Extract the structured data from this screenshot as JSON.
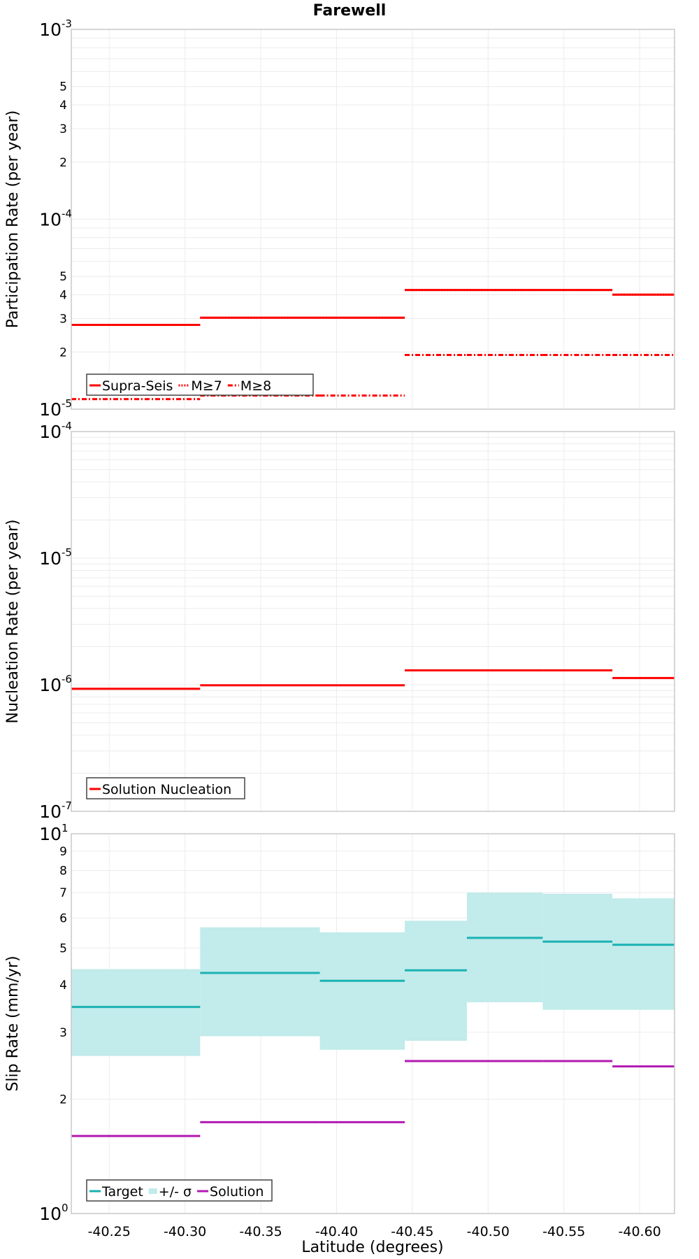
{
  "title": "Farewell",
  "xlabel": "Latitude (degrees)",
  "x_ticks": [
    "-40.25",
    "-40.30",
    "-40.35",
    "-40.40",
    "-40.45",
    "-40.50",
    "-40.55",
    "-40.60"
  ],
  "chart_data": [
    {
      "type": "line",
      "subtype": "step",
      "title": "Farewell",
      "xlabel": "Latitude (degrees)",
      "ylabel": "Participation Rate (per year)",
      "yscale": "log",
      "ylim": [
        1e-05,
        0.001
      ],
      "xlim": [
        -40.225,
        -40.623
      ],
      "x_edges": [
        -40.225,
        -40.31,
        -40.389,
        -40.445,
        -40.486,
        -40.536,
        -40.582,
        -40.623
      ],
      "grid": true,
      "legend_position": "bottom-left",
      "series": [
        {
          "name": "Supra-Seis",
          "style": "solid",
          "color": "#ff0000",
          "values": [
            2.78e-05,
            3.03e-05,
            3.03e-05,
            4.24e-05,
            4.24e-05,
            4.24e-05,
            4.01e-05
          ]
        },
        {
          "name": "M≥7",
          "style": "dotted",
          "color": "#ff0000",
          "values": [
            2.78e-05,
            3.03e-05,
            3.03e-05,
            4.24e-05,
            4.24e-05,
            4.24e-05,
            4.01e-05
          ]
        },
        {
          "name": "M≥8",
          "style": "dashdot",
          "color": "#ff0000",
          "values": [
            1.13e-05,
            1.18e-05,
            1.18e-05,
            1.93e-05,
            1.93e-05,
            1.93e-05,
            1.93e-05
          ]
        }
      ]
    },
    {
      "type": "line",
      "subtype": "step",
      "ylabel": "Nucleation Rate (per year)",
      "yscale": "log",
      "ylim": [
        1e-07,
        0.0001
      ],
      "xlim": [
        -40.225,
        -40.623
      ],
      "x_edges": [
        -40.225,
        -40.31,
        -40.389,
        -40.445,
        -40.486,
        -40.536,
        -40.582,
        -40.623
      ],
      "grid": true,
      "legend_position": "bottom-left",
      "series": [
        {
          "name": "Solution Nucleation",
          "style": "solid",
          "color": "#ff0000",
          "values": [
            9.3e-07,
            9.9e-07,
            9.9e-07,
            1.3e-06,
            1.3e-06,
            1.3e-06,
            1.13e-06
          ]
        }
      ]
    },
    {
      "type": "area",
      "subtype": "step",
      "xlabel": "Latitude (degrees)",
      "ylabel": "Slip Rate (mm/yr)",
      "yscale": "log",
      "ylim": [
        1,
        10
      ],
      "xlim": [
        -40.225,
        -40.623
      ],
      "x_edges": [
        -40.225,
        -40.31,
        -40.389,
        -40.445,
        -40.486,
        -40.536,
        -40.582,
        -40.623
      ],
      "grid": true,
      "legend_position": "bottom-left",
      "series": [
        {
          "name": "Target",
          "style": "solid",
          "color": "#1ab2b2",
          "values": [
            3.5,
            4.3,
            4.1,
            4.37,
            5.32,
            5.2,
            5.1
          ]
        },
        {
          "name": "+/- σ",
          "style": "band",
          "color": "#c2ebeb",
          "lower": [
            2.6,
            2.93,
            2.7,
            2.85,
            3.6,
            3.44,
            3.44
          ],
          "upper": [
            4.4,
            5.67,
            5.5,
            5.9,
            7.0,
            6.95,
            6.76
          ]
        },
        {
          "name": "Solution",
          "style": "solid",
          "color": "#b21ab2",
          "values": [
            1.6,
            1.74,
            1.74,
            2.52,
            2.52,
            2.52,
            2.44
          ]
        }
      ]
    }
  ]
}
